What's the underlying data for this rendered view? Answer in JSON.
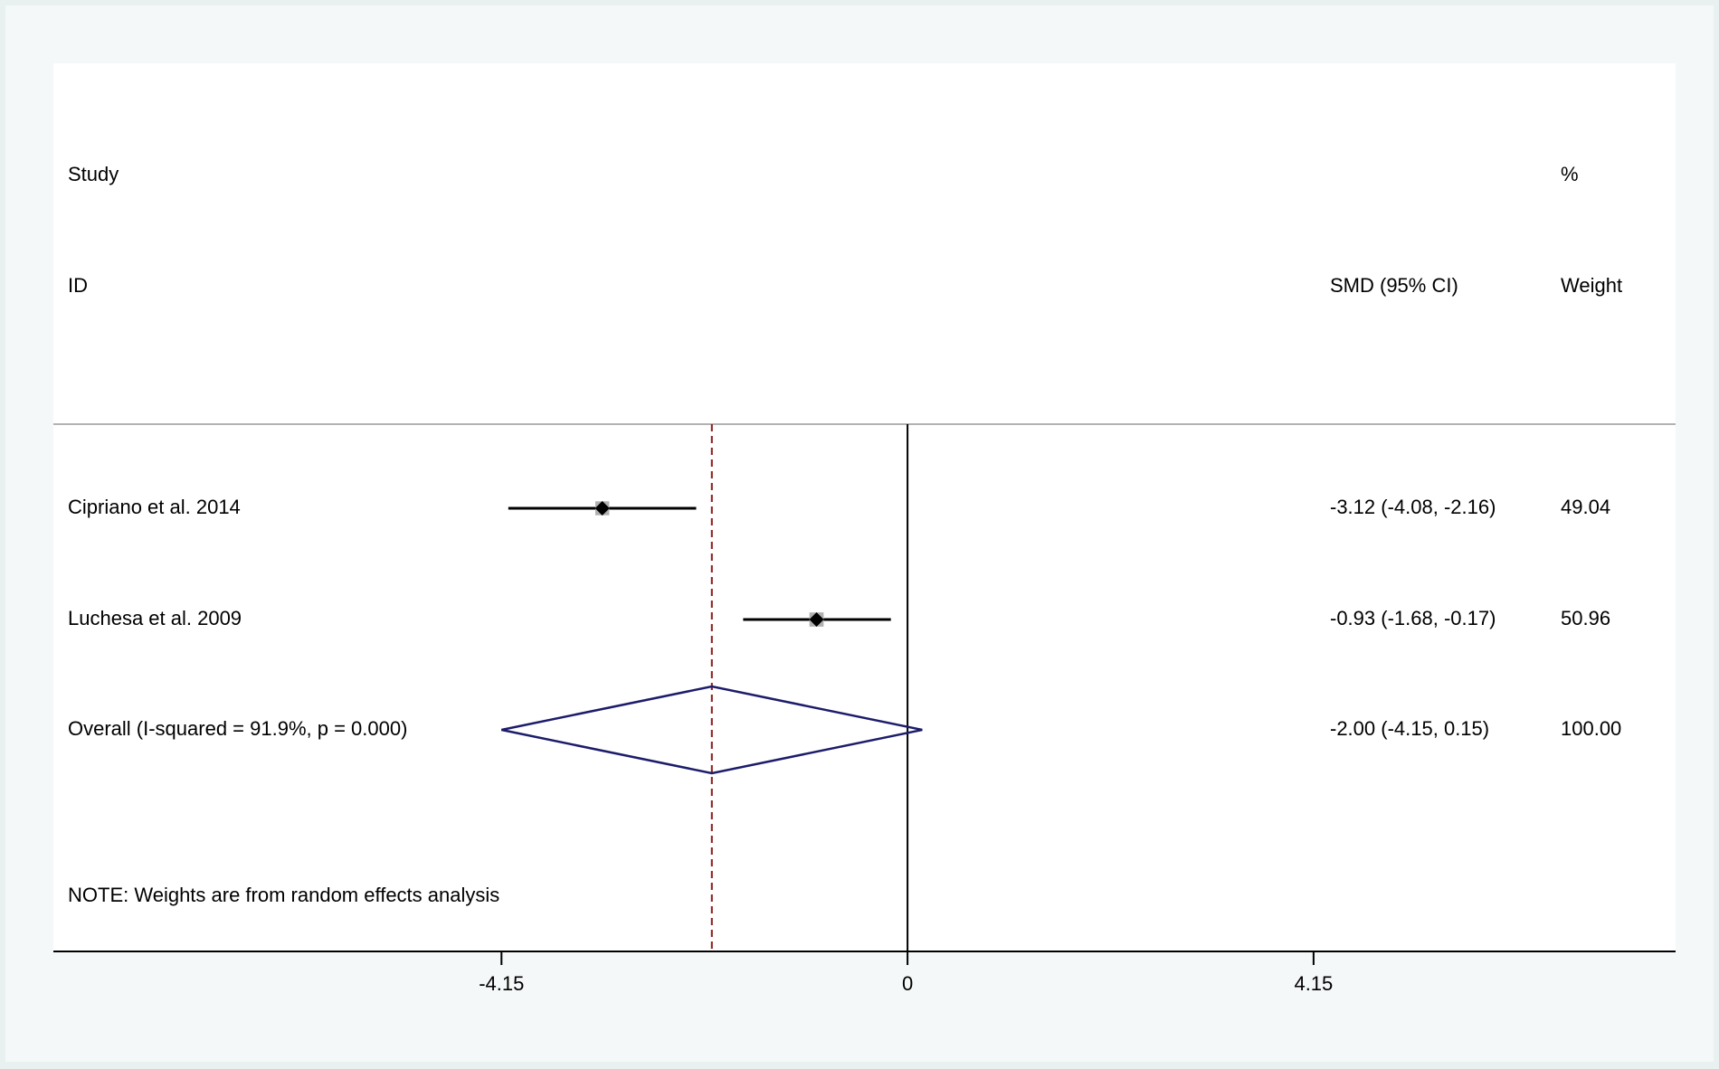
{
  "chart_data": {
    "type": "forest",
    "study_header": [
      "Study",
      "ID"
    ],
    "effect_header": "SMD (95% CI)",
    "weight_header": [
      "%",
      "Weight"
    ],
    "categories": [
      "Cipriano et al. 2014",
      "Luchesa et al. 2009",
      "Overall  (I-squared = 91.9%, p = 0.000)"
    ],
    "values": [
      -3.12,
      -0.93,
      -2.0
    ],
    "lower": [
      -4.08,
      -1.68,
      -4.15
    ],
    "upper": [
      -2.16,
      -0.17,
      0.15
    ],
    "value_labels": [
      "-3.12 (-4.08, -2.16)",
      "-0.93 (-1.68, -0.17)",
      "-2.00 (-4.15, 0.15)"
    ],
    "weights": [
      49.04,
      50.96,
      100
    ],
    "weight_labels": [
      "49.04",
      "50.96",
      "100.00"
    ],
    "note": "NOTE: Weights are from random effects analysis",
    "xlim": [
      -8.73,
      7.85
    ],
    "xticks": [
      -4.15,
      0,
      4.15
    ],
    "null_line": 0,
    "point_color": "#000000",
    "box_color": "#b0b0b0",
    "diamond_color": "#1c1c6b",
    "overall_line_color": "#8b1a1a"
  }
}
